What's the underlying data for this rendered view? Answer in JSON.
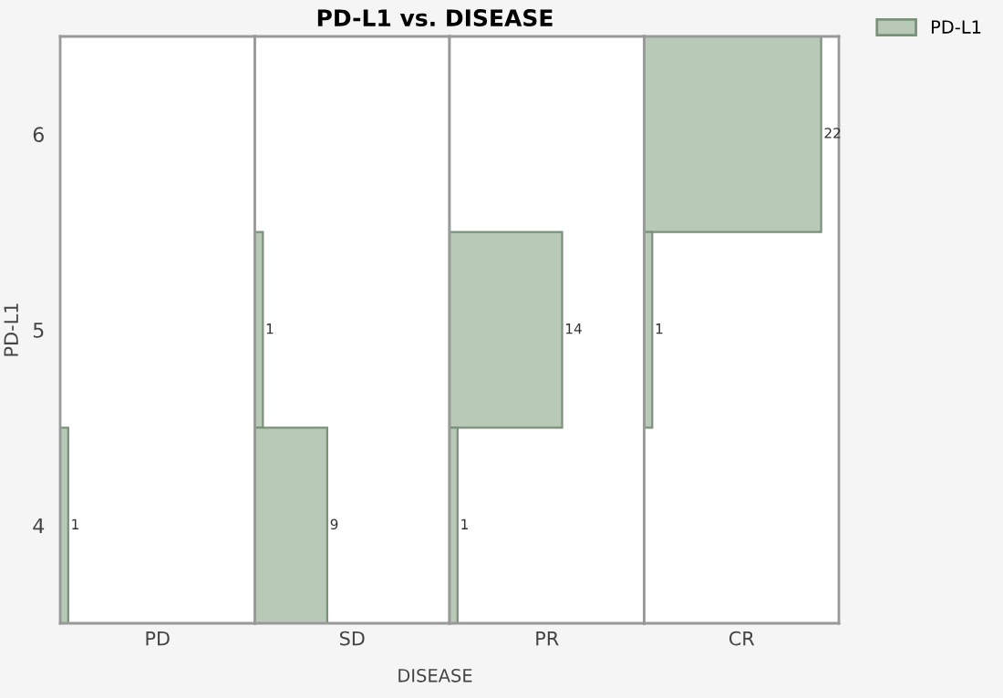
{
  "chart_data": [
    {
      "type": "bar",
      "orientation": "horizontal",
      "ylabel": "PD-L1",
      "xlabel": "PD",
      "categories": [
        "6",
        "5",
        "4"
      ],
      "tick_labels": "y",
      "data_labels": true,
      "grid": false,
      "series": [
        {
          "color": "#b9c9b8",
          "values": [
            null,
            null,
            1
          ]
        }
      ]
    },
    {
      "type": "bar",
      "orientation": "horizontal",
      "title": "PD-L1 vs. DISEASE",
      "annotations": [
        "DISEASE"
      ],
      "xlabel": "SD",
      "categories": [
        "6",
        "5",
        "4"
      ],
      "tick_labels": false,
      "data_labels": true,
      "grid": false,
      "series": [
        {
          "color": "#b9c9b8",
          "values": [
            null,
            1,
            9
          ]
        }
      ]
    },
    {
      "type": "bar",
      "orientation": "horizontal",
      "xlabel": "PR",
      "categories": [
        "6",
        "5",
        "4"
      ],
      "tick_labels": false,
      "data_labels": true,
      "grid": false,
      "series": [
        {
          "color": "#b9c9b8",
          "values": [
            null,
            14,
            1
          ]
        }
      ]
    },
    {
      "type": "bar",
      "orientation": "horizontal",
      "xlabel": "CR",
      "categories": [
        "6",
        "5",
        "4"
      ],
      "tick_labels": false,
      "data_labels": true,
      "grid": false,
      "legend": "top right",
      "series": [
        {
          "name": "PD-L1",
          "color": "#b9c9b8",
          "values": [
            22,
            1,
            null
          ]
        }
      ]
    }
  ]
}
